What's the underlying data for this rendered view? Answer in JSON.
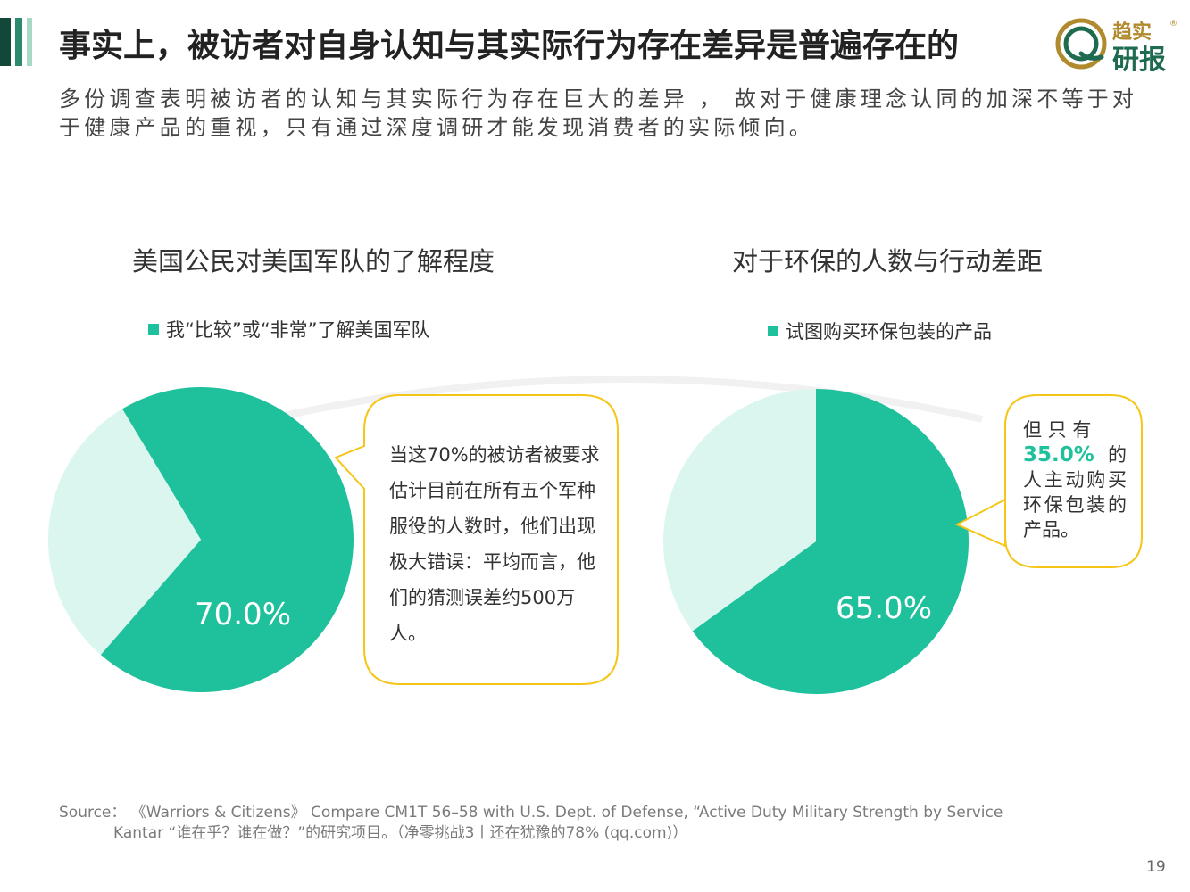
{
  "title": "事实上，被访者对自身认知与其实际行为存在差异是普遍存在的",
  "logo": {
    "line1": "趋实",
    "line2": "研报",
    "mark": "®"
  },
  "subtitle": "多份调查表明被访者的认知与其实际行为存在巨大的差异 ， 故对于健康理念认同的加深不等于对于健康产品的重视，只有通过深度调研才能发现消费者的实际倾向。",
  "colors": {
    "primary": "#1fc19c",
    "light": "#daf6ef",
    "callout_border": "#f5c518"
  },
  "chart_data": [
    {
      "type": "pie",
      "title": "美国公民对美国军队的了解程度",
      "legend": "我“比较”或“非常”了解美国军队",
      "slices": [
        {
          "name": "我“比较”或“非常”了解美国军队",
          "value": 70.0,
          "label": "70.0%"
        },
        {
          "value": 30.0
        }
      ],
      "annotation": "当这70%的被访者被要求估计目前在所有五个军种服役的人数时，他们出现极大错误：平均而言，他们的猜测误差约500万人。"
    },
    {
      "type": "pie",
      "title": "对于环保的人数与行动差距",
      "legend": "试图购买环保包装的产品",
      "slices": [
        {
          "name": "试图购买环保包装的产品",
          "value": 65.0,
          "label": "65.0%"
        },
        {
          "value": 35.0
        }
      ],
      "annotation": {
        "prefix": "但 只 有",
        "highlight": "35.0%",
        "suffix": " 的人主动购买环保包装的产品。"
      }
    }
  ],
  "source": {
    "line1": "Source： 《Warriors & Citizens》 Compare CM1T  56–58 with U.S. Dept. of Defense, “Active Duty Military Strength by Service",
    "line2": "Kantar “谁在乎？谁在做？”的研究项目。（净零挑战3丨还在犹豫的78% (qq.com)）"
  },
  "page_number": "19"
}
